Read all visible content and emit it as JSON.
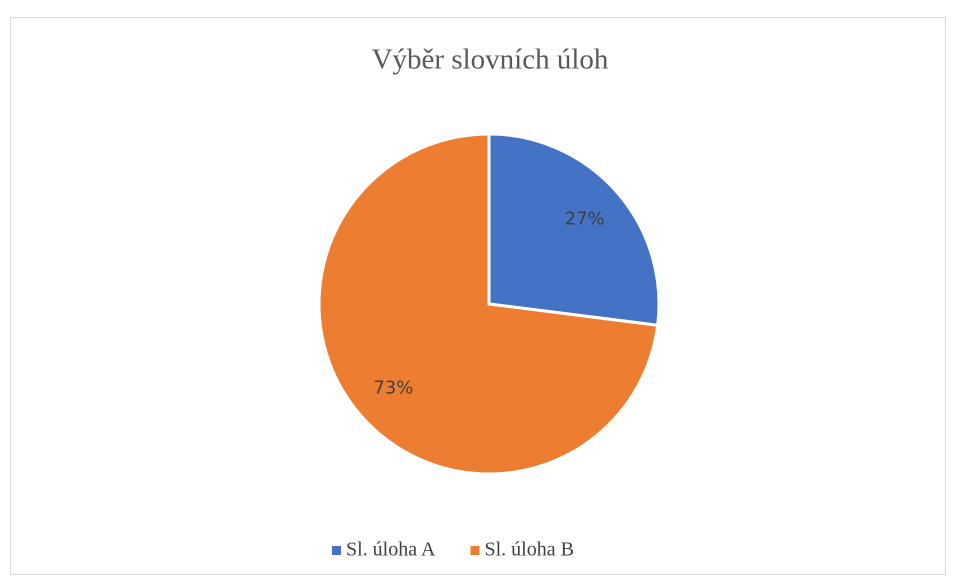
{
  "chart_data": {
    "type": "pie",
    "title": "Výběr slovních úloh",
    "categories": [
      "Sl. úloha A",
      "Sl. úloha B"
    ],
    "values": [
      27,
      73
    ],
    "value_labels": [
      "27%",
      "73%"
    ],
    "colors": [
      "#4472c4",
      "#ed7d31"
    ],
    "legend": "bottom"
  }
}
